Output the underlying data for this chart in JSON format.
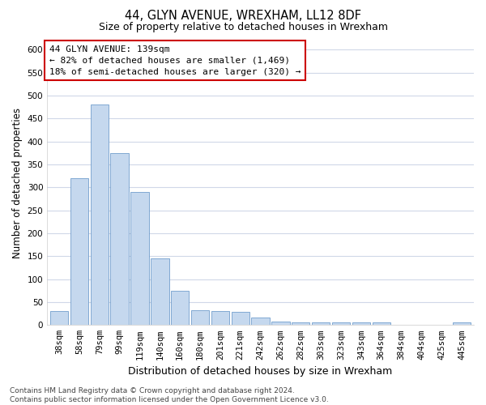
{
  "title1": "44, GLYN AVENUE, WREXHAM, LL12 8DF",
  "title2": "Size of property relative to detached houses in Wrexham",
  "xlabel": "Distribution of detached houses by size in Wrexham",
  "ylabel": "Number of detached properties",
  "categories": [
    "38sqm",
    "58sqm",
    "79sqm",
    "99sqm",
    "119sqm",
    "140sqm",
    "160sqm",
    "180sqm",
    "201sqm",
    "221sqm",
    "242sqm",
    "262sqm",
    "282sqm",
    "303sqm",
    "323sqm",
    "343sqm",
    "364sqm",
    "384sqm",
    "404sqm",
    "425sqm",
    "445sqm"
  ],
  "values": [
    30,
    320,
    480,
    375,
    290,
    145,
    75,
    32,
    30,
    28,
    16,
    8,
    6,
    5,
    5,
    5,
    5,
    0,
    0,
    0,
    5
  ],
  "bar_color": "#c5d8ee",
  "bar_edge_color": "#5b8ec4",
  "subject_index": 5,
  "annotation_line1": "44 GLYN AVENUE: 139sqm",
  "annotation_line2": "← 82% of detached houses are smaller (1,469)",
  "annotation_line3": "18% of semi-detached houses are larger (320) →",
  "annotation_box_color": "#ffffff",
  "annotation_box_edge": "#cc0000",
  "ylim": [
    0,
    620
  ],
  "yticks": [
    0,
    50,
    100,
    150,
    200,
    250,
    300,
    350,
    400,
    450,
    500,
    550,
    600
  ],
  "footer_line1": "Contains HM Land Registry data © Crown copyright and database right 2024.",
  "footer_line2": "Contains public sector information licensed under the Open Government Licence v3.0.",
  "background_color": "#ffffff",
  "grid_color": "#d0d8e8",
  "fig_width": 6.0,
  "fig_height": 5.0,
  "title1_fontsize": 10.5,
  "title2_fontsize": 9.0,
  "ylabel_fontsize": 8.5,
  "xlabel_fontsize": 9.0,
  "tick_fontsize": 7.5,
  "ann_fontsize": 8.0,
  "footer_fontsize": 6.5
}
